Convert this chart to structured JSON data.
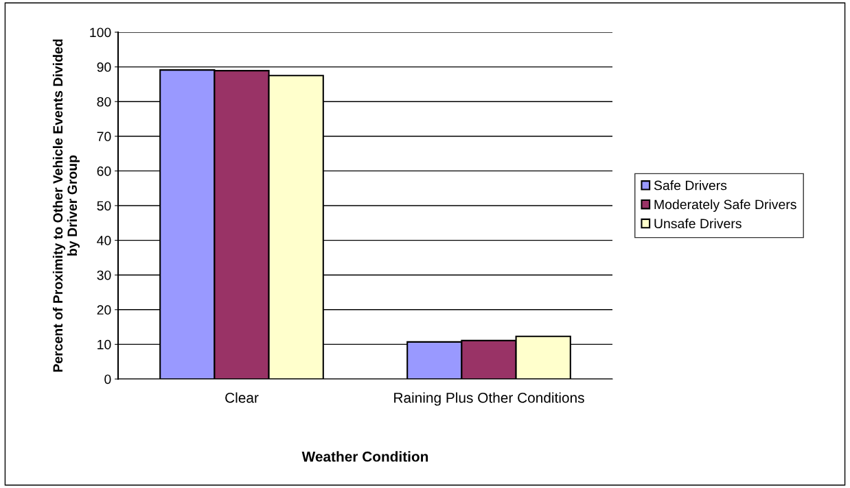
{
  "chart_data": {
    "type": "bar",
    "xlabel": "Weather Condition",
    "ylabel": "Percent of Proximity to Other Vehicle Events Divided\nby Driver Group",
    "categories": [
      "Clear",
      "Raining Plus Other Conditions"
    ],
    "series": [
      {
        "name": "Safe Drivers",
        "color": "#9999ff",
        "values": [
          89.1,
          10.7
        ]
      },
      {
        "name": "Moderately Safe Drivers",
        "color": "#993366",
        "values": [
          88.9,
          11.1
        ]
      },
      {
        "name": "Unsafe Drivers",
        "color": "#ffffcc",
        "values": [
          87.5,
          12.3
        ]
      }
    ],
    "ylim": [
      0,
      100
    ],
    "yticks": [
      0,
      10,
      20,
      30,
      40,
      50,
      60,
      70,
      80,
      90,
      100
    ],
    "grid": "y",
    "legend": "right"
  }
}
